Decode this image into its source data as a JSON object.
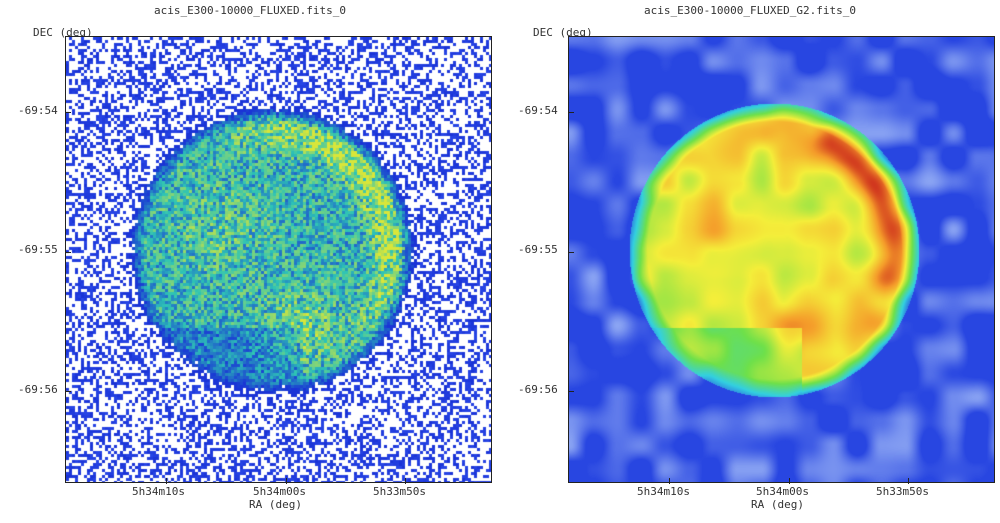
{
  "left": {
    "title": "acis_E300-10000_FLUXED.fits_0",
    "ylabel": "DEC (deg)",
    "xlabel": "RA (deg)",
    "yticks": [
      "-69:54",
      "-69:55",
      "-69:56"
    ],
    "xticks": [
      "5h34m10s",
      "5h34m00s",
      "5h33m50s"
    ],
    "style": "binned counts, blue-green-yellow colormap",
    "colors": {
      "low": "#1a33d6",
      "mid": "#2ec4b6",
      "high": "#d8e63a"
    }
  },
  "right": {
    "title": "acis_E300-10000_FLUXED_G2.fits_0",
    "ylabel": "DEC (deg)",
    "xlabel": "RA (deg)",
    "yticks": [
      "-69:54",
      "-69:55",
      "-69:56"
    ],
    "xticks": [
      "5h34m10s",
      "5h34m00s",
      "5h33m50s"
    ],
    "style": "gaussian smoothed, rainbow colormap",
    "colors": {
      "background": "#2a50e0",
      "cyan": "#33d0e0",
      "green": "#6ee04a",
      "yellow": "#f4ee3a",
      "orange": "#f49a2a",
      "red": "#c4141a"
    }
  }
}
